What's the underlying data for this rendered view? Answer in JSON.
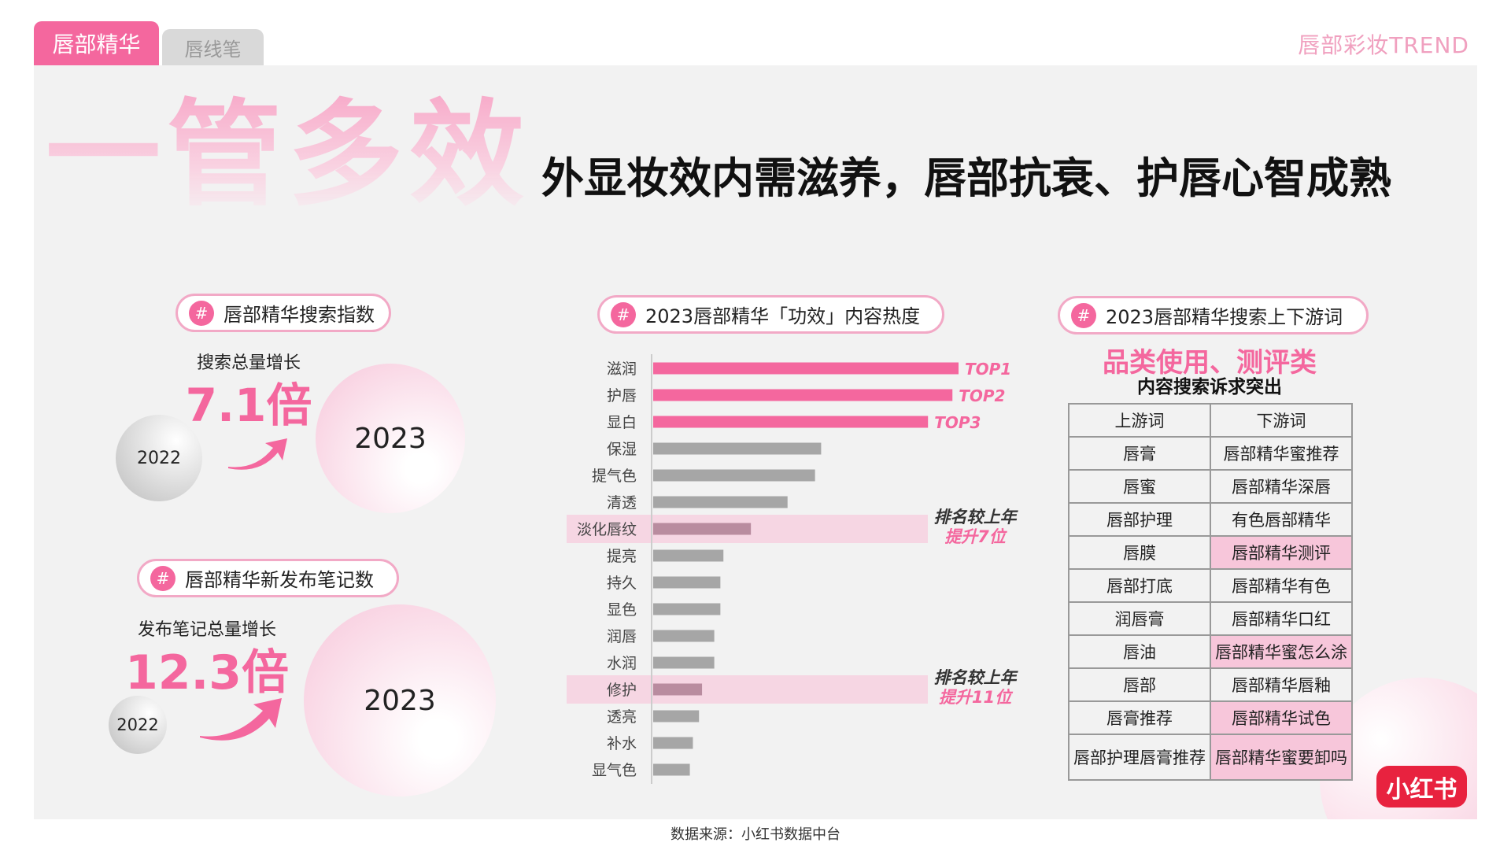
{
  "tabs": [
    "唇部精华",
    "唇线笔"
  ],
  "brand": "唇部彩妆TREND",
  "header": {
    "title": "一管多效",
    "headline": "外显妆效内需滋养，唇部抗衰、护唇心智成熟"
  },
  "hash": "#",
  "search_index": {
    "tag": "唇部精华搜索指数",
    "label": "搜索总量增长",
    "growth": "7.1倍",
    "from_year": "2022",
    "to_year": "2023"
  },
  "new_notes": {
    "tag": "唇部精华新发布笔记数",
    "label": "发布笔记总量增长",
    "growth": "12.3倍",
    "from_year": "2022",
    "to_year": "2023"
  },
  "chart_data": {
    "type": "bar",
    "orientation": "horizontal",
    "title": "2023唇部精华「功效」内容热度",
    "categories": [
      "滋润",
      "护唇",
      "显白",
      "保湿",
      "提气色",
      "清透",
      "淡化唇纹",
      "提亮",
      "持久",
      "显色",
      "润唇",
      "水润",
      "修护",
      "透亮",
      "补水",
      "显气色"
    ],
    "values": [
      100,
      98,
      90,
      55,
      53,
      44,
      32,
      23,
      22,
      22,
      20,
      20,
      16,
      15,
      13,
      12
    ],
    "color": "#a6a6a6",
    "top_color": "#f4679e",
    "top_labels": [
      "TOP1",
      "TOP2",
      "TOP3"
    ],
    "highlight_color": "#f6d6e3",
    "highlight_bar_color": "#b98c9f",
    "annotations": [
      {
        "index": 6,
        "lines": [
          "排名较上年",
          "提升7位"
        ]
      },
      {
        "index": 12,
        "lines": [
          "排名较上年",
          "提升11位"
        ]
      }
    ]
  },
  "keywords": {
    "tag": "2023唇部精华搜索上下游词",
    "highlight": "品类使用、测评类",
    "subtitle": "内容搜索诉求突出",
    "table": {
      "header": [
        "上游词",
        "下游词"
      ],
      "rows": [
        [
          "唇膏",
          "唇部精华蜜推荐"
        ],
        [
          "唇蜜",
          "唇部精华深唇"
        ],
        [
          "唇部护理",
          "有色唇部精华"
        ],
        [
          "唇膜",
          "唇部精华测评"
        ],
        [
          "唇部打底",
          "唇部精华有色"
        ],
        [
          "润唇膏",
          "唇部精华口红"
        ],
        [
          "唇油",
          "唇部精华蜜怎么涂"
        ],
        [
          "唇部",
          "唇部精华唇釉"
        ],
        [
          "唇膏推荐",
          "唇部精华试色"
        ],
        [
          "唇部护理唇膏推荐",
          "唇部精华蜜要卸吗"
        ]
      ],
      "highlight_cells": [
        [
          3,
          1
        ],
        [
          6,
          1
        ],
        [
          8,
          1
        ],
        [
          9,
          1
        ]
      ],
      "highlight_color": "#f7c6da"
    }
  },
  "source": "数据来源：小红书数据中台",
  "logo": "小红书"
}
